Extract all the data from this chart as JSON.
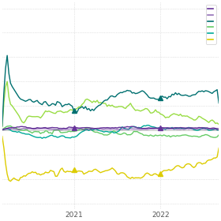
{
  "background_color": "#ffffff",
  "grid_color": "#cccccc",
  "xlim": [
    0,
    130
  ],
  "ylim": [
    -0.65,
    1.05
  ],
  "x_tick_labels": [
    "2021",
    "2022"
  ],
  "x_tick_positions": [
    43,
    95
  ],
  "colors": {
    "dark_teal": "#007070",
    "teal": "#00aa99",
    "light_green": "#66cc66",
    "bright_green": "#99dd44",
    "purple": "#663399",
    "yellow": "#ddcc00"
  }
}
